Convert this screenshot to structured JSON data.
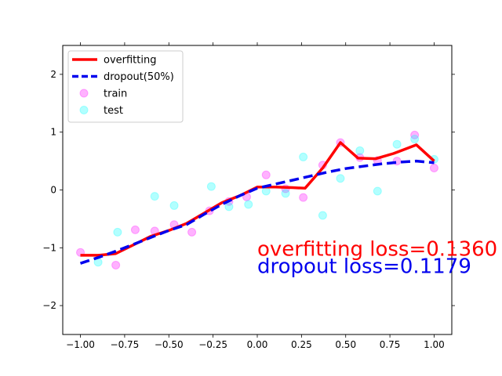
{
  "chart_data": {
    "type": "scatter",
    "title": "",
    "xlabel": "",
    "ylabel": "",
    "xlim": [
      -1.1,
      1.1
    ],
    "ylim": [
      -2.5,
      2.5
    ],
    "x_ticks": [
      -1.0,
      -0.75,
      -0.5,
      -0.25,
      0.0,
      0.25,
      0.5,
      0.75,
      1.0
    ],
    "x_tick_labels": [
      "−1.00",
      "−0.75",
      "−0.50",
      "−0.25",
      "0.00",
      "0.25",
      "0.50",
      "0.75",
      "1.00"
    ],
    "y_ticks": [
      -2,
      -1,
      0,
      1,
      2
    ],
    "y_tick_labels": [
      "−2",
      "−1",
      "0",
      "1",
      "2"
    ],
    "grid": false,
    "legend_position": "top-left",
    "series": [
      {
        "name": "overfitting",
        "kind": "line",
        "color": "#ff0000",
        "style": "solid",
        "x": [
          -1.0,
          -0.9,
          -0.8,
          -0.7,
          -0.6,
          -0.5,
          -0.4,
          -0.3,
          -0.2,
          -0.1,
          0.0,
          0.1,
          0.2,
          0.27,
          0.37,
          0.47,
          0.57,
          0.67,
          0.77,
          0.9,
          1.0
        ],
        "y": [
          -1.13,
          -1.13,
          -1.1,
          -0.95,
          -0.8,
          -0.7,
          -0.58,
          -0.4,
          -0.22,
          -0.1,
          0.05,
          0.05,
          0.04,
          0.03,
          0.38,
          0.82,
          0.55,
          0.54,
          0.63,
          0.78,
          0.5
        ]
      },
      {
        "name": "dropout(50%)",
        "kind": "line",
        "color": "#0000ee",
        "style": "dashed",
        "x": [
          -1.0,
          -0.9,
          -0.8,
          -0.7,
          -0.6,
          -0.5,
          -0.4,
          -0.3,
          -0.2,
          -0.1,
          0.0,
          0.1,
          0.2,
          0.3,
          0.4,
          0.5,
          0.6,
          0.7,
          0.8,
          0.9,
          1.0
        ],
        "y": [
          -1.27,
          -1.17,
          -1.06,
          -0.94,
          -0.82,
          -0.7,
          -0.6,
          -0.42,
          -0.25,
          -0.1,
          0.03,
          0.1,
          0.17,
          0.24,
          0.31,
          0.37,
          0.41,
          0.45,
          0.48,
          0.5,
          0.47
        ]
      },
      {
        "name": "train",
        "kind": "scatter",
        "color": "#ff00ff",
        "x": [
          -1.0,
          -0.8,
          -0.69,
          -0.58,
          -0.47,
          -0.37,
          -0.27,
          -0.16,
          -0.06,
          0.05,
          0.16,
          0.26,
          0.37,
          0.47,
          0.58,
          0.68,
          0.79,
          0.89,
          1.0
        ],
        "y": [
          -1.08,
          -1.3,
          -0.69,
          -0.71,
          -0.6,
          -0.73,
          -0.36,
          -0.2,
          -0.12,
          0.26,
          0.02,
          -0.13,
          0.43,
          0.82,
          0.56,
          0.51,
          0.5,
          0.95,
          0.38
        ]
      },
      {
        "name": "test",
        "kind": "scatter",
        "color": "#00ffff",
        "x": [
          -0.9,
          -0.79,
          -0.58,
          -0.47,
          -0.26,
          -0.16,
          -0.05,
          0.05,
          0.16,
          0.26,
          0.37,
          0.47,
          0.58,
          0.68,
          0.79,
          0.89,
          1.0
        ],
        "y": [
          -1.25,
          -0.73,
          -0.11,
          -0.27,
          0.06,
          -0.29,
          -0.25,
          -0.02,
          -0.06,
          0.57,
          -0.44,
          0.2,
          0.68,
          -0.02,
          0.79,
          0.88,
          0.53
        ]
      }
    ],
    "annotations": [
      {
        "text": "overfitting loss=0.1360",
        "color": "#ff0000",
        "x": 0.0,
        "y": -1.0
      },
      {
        "text": "dropout loss=0.1179",
        "color": "#0000ee",
        "x": 0.0,
        "y": -1.3
      }
    ]
  }
}
